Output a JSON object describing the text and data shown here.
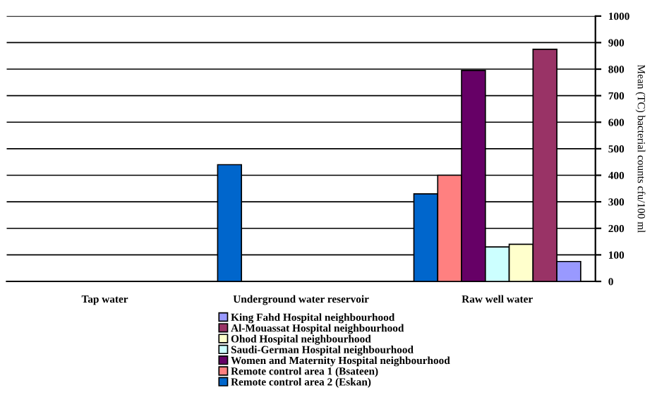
{
  "chart_data": {
    "type": "bar",
    "ylabel": "Mean (TC) bacterial counts cfu/100 ml",
    "categories": [
      "Tap water",
      "Underground water reservoir",
      "Raw well water"
    ],
    "series": [
      {
        "name": "Remote control area 2 (Eskan)",
        "color": "#0066cc",
        "values": [
          null,
          440,
          330
        ]
      },
      {
        "name": "Remote control area 1 (Bsateen)",
        "color": "#ff8080",
        "values": [
          null,
          null,
          400
        ]
      },
      {
        "name": "Women and Maternity Hospital neighbourhood",
        "color": "#660066",
        "values": [
          null,
          null,
          795
        ]
      },
      {
        "name": "Saudi-German Hospital neighbourhood",
        "color": "#ccffff",
        "values": [
          null,
          null,
          130
        ]
      },
      {
        "name": "Ohod Hospital neighbourhood",
        "color": "#ffffcc",
        "values": [
          null,
          null,
          140
        ]
      },
      {
        "name": "Al-Mouassat Hospital neighbourhood",
        "color": "#993366",
        "values": [
          null,
          null,
          875
        ]
      },
      {
        "name": "King Fahd Hospital neighbourhood",
        "color": "#9999ff",
        "values": [
          null,
          null,
          75
        ]
      }
    ],
    "ylim": [
      0,
      1000
    ],
    "yticks": [
      0,
      100,
      200,
      300,
      400,
      500,
      600,
      700,
      800,
      900,
      1000
    ],
    "grid": "y",
    "legend": "bottom"
  }
}
